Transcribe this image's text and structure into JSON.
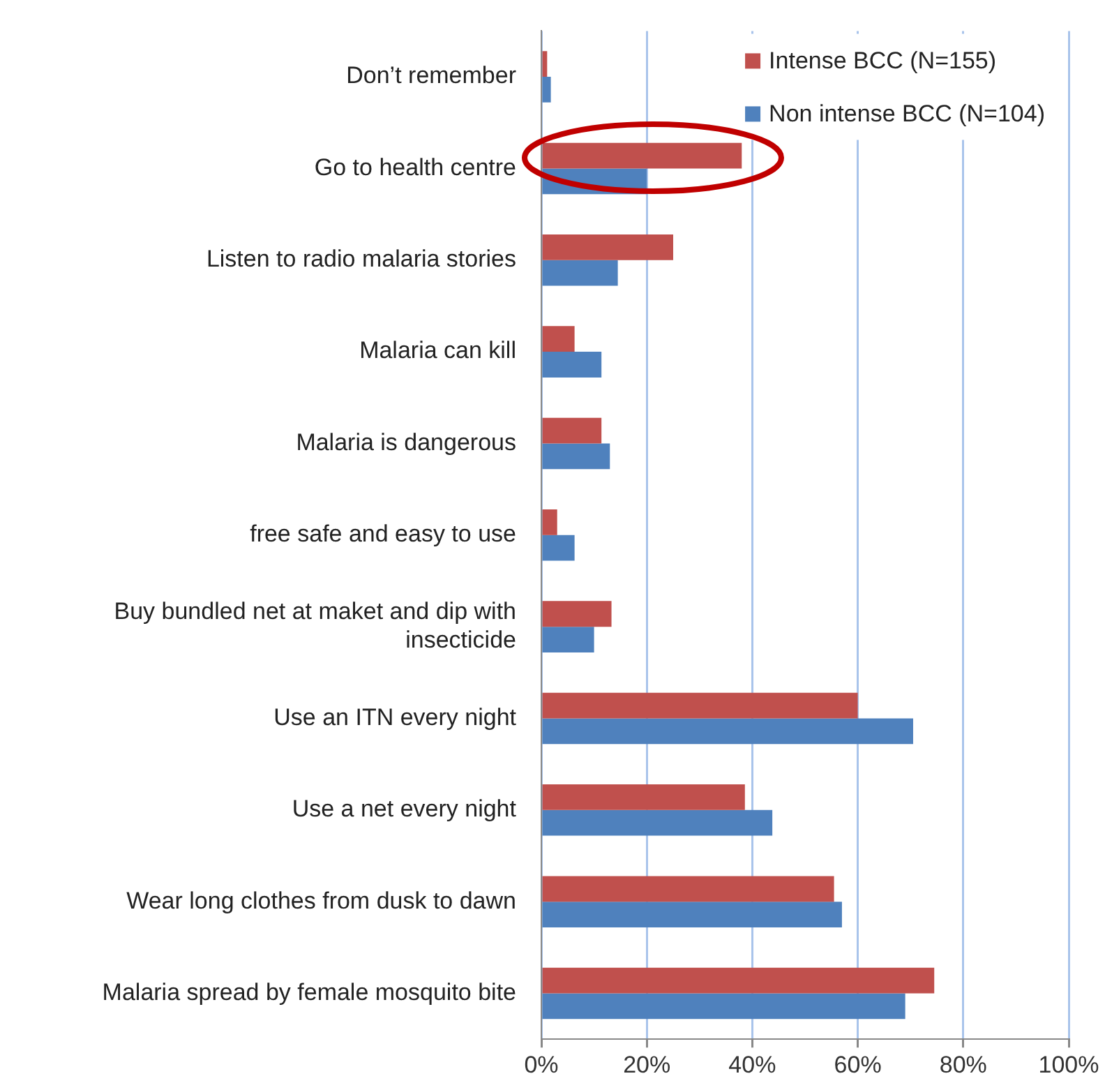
{
  "chart_data": {
    "type": "bar",
    "orientation": "horizontal",
    "categories": [
      "Don’t remember",
      "Go to health centre",
      "Listen to radio malaria stories",
      "Malaria can kill",
      "Malaria is dangerous",
      "free safe and easy to use",
      "Buy bundled net at maket and dip with insecticide",
      "Use an ITN every night",
      "Use a net every night",
      "Wear long clothes from dusk to dawn",
      "Malaria spread by female mosquito bite"
    ],
    "series": [
      {
        "name": "Intense BCC (N=155)",
        "color": "#c0504d",
        "values": [
          1.1,
          38,
          25,
          6.3,
          11.4,
          3,
          13.3,
          60,
          38.6,
          55.5,
          74.5
        ]
      },
      {
        "name": "Non intense BCC (N=104)",
        "color": "#4f81bd",
        "values": [
          1.8,
          20,
          14.5,
          11.4,
          13,
          6.3,
          10,
          70.5,
          43.8,
          57,
          69
        ]
      }
    ],
    "xlim": [
      0,
      100
    ],
    "xticks": [
      {
        "value": 0,
        "label": "0%"
      },
      {
        "value": 20,
        "label": "20%"
      },
      {
        "value": 40,
        "label": "40%"
      },
      {
        "value": 60,
        "label": "60%"
      },
      {
        "value": 80,
        "label": "80%"
      },
      {
        "value": 100,
        "label": "100%"
      }
    ],
    "grid": "x",
    "legend": "top right"
  }
}
